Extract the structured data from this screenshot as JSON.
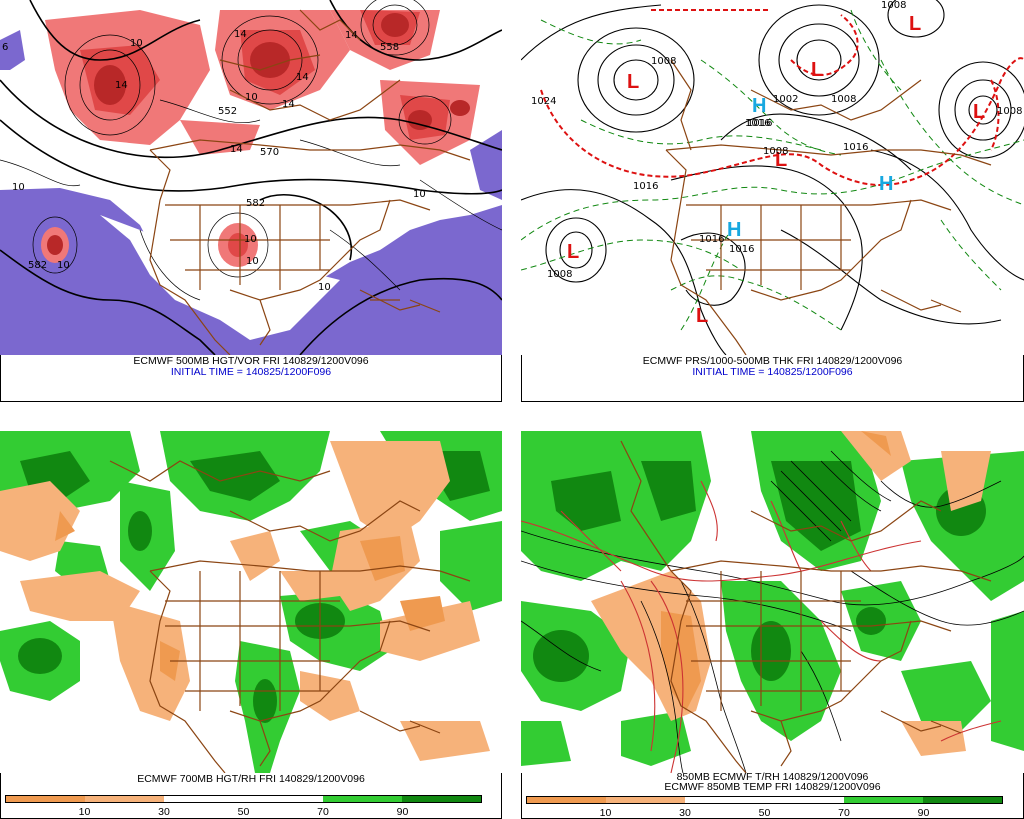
{
  "panels": {
    "tl": {
      "caption_line1": "ECMWF 500MB HGT/VOR FRI 140829/1200V096",
      "caption_line2": "INITIAL TIME = 140825/1200F096",
      "labels": [
        "6",
        "10",
        "10",
        "10",
        "10",
        "552",
        "558",
        "570",
        "582",
        "582",
        "10",
        "10",
        "14",
        "14",
        "10",
        "14",
        "14",
        "14",
        "14",
        "10"
      ]
    },
    "tr": {
      "caption_line1": "ECMWF PRS/1000-500MB THK FRI 140829/1200V096",
      "caption_line2": "INITIAL TIME = 140825/1200F096",
      "labels": [
        "1024",
        "1008",
        "1008",
        "1016",
        "1016",
        "1016",
        "1016",
        "1008",
        "1008",
        "1008",
        "1008",
        "1002",
        "1016",
        "1016"
      ]
    },
    "bl": {
      "caption_line1": "ECMWF 700MB HGT/RH FRI 140829/1200V096",
      "colorbar_ticks": [
        "10",
        "30",
        "50",
        "70",
        "90"
      ]
    },
    "br": {
      "caption_line1": "850MB ECMWF T/RH 140829/1200V096",
      "caption_line2": "ECMWF 850MB TEMP FRI 140829/1200V096",
      "colorbar_ticks": [
        "10",
        "30",
        "50",
        "70",
        "90"
      ]
    }
  },
  "highs_lows": {
    "high_symbol": "H",
    "low_symbol": "L"
  },
  "colors": {
    "vort_light": "#f07878",
    "vort_mid": "#e04848",
    "vort_dark": "#b82828",
    "neg_vort": "#7b68cf",
    "dry_light": "#f6b27a",
    "dry": "#ef9a50",
    "moist": "#33cc33",
    "moist_dark": "#118811",
    "border": "#8b4513",
    "low_red": "#dd1111",
    "high_blue": "#18a8e0"
  }
}
